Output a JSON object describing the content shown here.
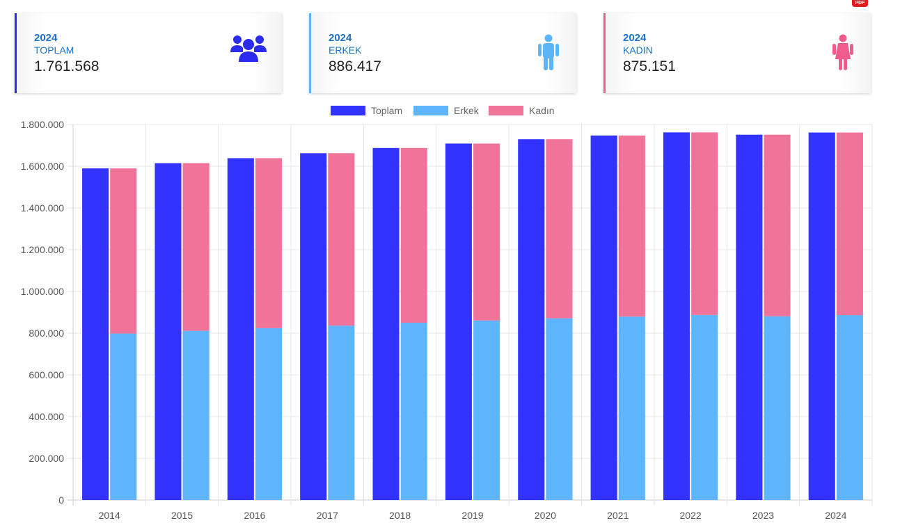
{
  "cards": [
    {
      "year": "2024",
      "label": "TOPLAM",
      "value": "1.761.568",
      "icon": "group-users-icon",
      "accent": "#2b2bf0"
    },
    {
      "year": "2024",
      "label": "ERKEK",
      "value": "886.417",
      "icon": "male-person-icon",
      "accent": "#5bb5f7"
    },
    {
      "year": "2024",
      "label": "KADIN",
      "value": "875.151",
      "icon": "female-person-icon",
      "accent": "#e8608c"
    }
  ],
  "pdf_badge": "PDF",
  "chart_data": {
    "type": "bar",
    "stacked_groups": "Toplam in its own bar; Erkek and Kadın stacked in a second bar",
    "categories": [
      "2014",
      "2015",
      "2016",
      "2017",
      "2018",
      "2019",
      "2020",
      "2021",
      "2022",
      "2023",
      "2024"
    ],
    "series": [
      {
        "name": "Toplam",
        "color": "#3333ff",
        "values": [
          1589607,
          1614618,
          1638626,
          1662319,
          1687292,
          1708535,
          1729330,
          1747218,
          1762158,
          1750995,
          1761568
        ]
      },
      {
        "name": "Erkek",
        "color": "#5eb5fc",
        "values": [
          798180,
          811150,
          824028,
          836054,
          850065,
          860800,
          871110,
          879140,
          887120,
          880600,
          886417
        ]
      },
      {
        "name": "Kadın",
        "color": "#f0739a",
        "values": [
          791427,
          803468,
          814598,
          826265,
          837227,
          847735,
          858220,
          868078,
          875038,
          870395,
          875151
        ]
      }
    ],
    "ylim": [
      0,
      1800000
    ],
    "yticks": [
      "0",
      "200.000",
      "400.000",
      "600.000",
      "800.000",
      "1.000.000",
      "1.200.000",
      "1.400.000",
      "1.600.000",
      "1.800.000"
    ],
    "legend": "top",
    "grid": true
  }
}
